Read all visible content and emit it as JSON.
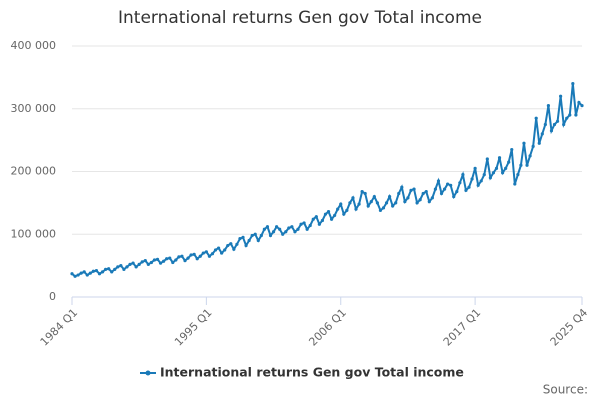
{
  "chart_data": {
    "type": "line",
    "title": "International returns Gen gov Total income",
    "categories": [
      "1984 Q1",
      null,
      null,
      null,
      null,
      null,
      null,
      null,
      null,
      null,
      null,
      null,
      null,
      null,
      null,
      null,
      null,
      null,
      null,
      null,
      null,
      null,
      null,
      null,
      null,
      null,
      null,
      null,
      null,
      null,
      null,
      null,
      null,
      null,
      null,
      null,
      null,
      null,
      null,
      null,
      null,
      null,
      null,
      null,
      "1995 Q1",
      null,
      null,
      null,
      null,
      null,
      null,
      null,
      null,
      null,
      null,
      null,
      null,
      null,
      null,
      null,
      null,
      null,
      null,
      null,
      null,
      null,
      null,
      null,
      null,
      null,
      null,
      null,
      null,
      null,
      null,
      null,
      null,
      null,
      null,
      null,
      null,
      null,
      null,
      null,
      null,
      null,
      null,
      null,
      "2006 Q1",
      null,
      null,
      null,
      null,
      null,
      null,
      null,
      null,
      null,
      null,
      null,
      null,
      null,
      null,
      null,
      null,
      null,
      null,
      null,
      null,
      null,
      null,
      null,
      null,
      null,
      null,
      null,
      null,
      null,
      null,
      null,
      null,
      null,
      null,
      null,
      null,
      null,
      null,
      null,
      null,
      null,
      null,
      null,
      "2017 Q1",
      null,
      null,
      null,
      null,
      null,
      null,
      null,
      null,
      null,
      null,
      null,
      null,
      null,
      null,
      null,
      null,
      null,
      null,
      null,
      null,
      null,
      null,
      null,
      null,
      null,
      null,
      null,
      null,
      null,
      null,
      null,
      null,
      null,
      null,
      "2025 Q4"
    ],
    "series": [
      {
        "name": "International returns Gen gov Total income",
        "color": "#1a7ab8",
        "values": [
          37000,
          33000,
          35000,
          38000,
          40000,
          35000,
          38000,
          41000,
          42000,
          37000,
          40000,
          44000,
          45000,
          40000,
          44000,
          48000,
          50000,
          44000,
          48000,
          52000,
          54000,
          48000,
          52000,
          56000,
          58000,
          52000,
          55000,
          59000,
          60000,
          54000,
          57000,
          61000,
          62000,
          55000,
          59000,
          64000,
          65000,
          58000,
          62000,
          67000,
          68000,
          61000,
          65000,
          70000,
          72000,
          65000,
          69000,
          75000,
          78000,
          70000,
          75000,
          82000,
          85000,
          76000,
          84000,
          93000,
          95000,
          82000,
          90000,
          98000,
          100000,
          90000,
          98000,
          108000,
          112000,
          98000,
          104000,
          112000,
          108000,
          100000,
          104000,
          110000,
          112000,
          104000,
          108000,
          116000,
          118000,
          108000,
          114000,
          124000,
          128000,
          116000,
          122000,
          132000,
          136000,
          124000,
          130000,
          140000,
          148000,
          132000,
          138000,
          150000,
          158000,
          140000,
          148000,
          168000,
          165000,
          145000,
          152000,
          160000,
          150000,
          138000,
          142000,
          150000,
          160000,
          145000,
          150000,
          165000,
          175000,
          152000,
          158000,
          170000,
          172000,
          150000,
          155000,
          165000,
          168000,
          152000,
          158000,
          172000,
          185000,
          165000,
          172000,
          180000,
          178000,
          160000,
          168000,
          182000,
          195000,
          170000,
          175000,
          188000,
          205000,
          178000,
          185000,
          195000,
          220000,
          190000,
          198000,
          205000,
          222000,
          198000,
          205000,
          215000,
          235000,
          180000,
          195000,
          210000,
          245000,
          210000,
          225000,
          240000,
          285000,
          245000,
          260000,
          275000,
          305000,
          265000,
          275000,
          280000,
          320000,
          275000,
          285000,
          290000,
          340000,
          290000,
          310000,
          305000
        ]
      }
    ],
    "ylim": [
      0,
      400000
    ],
    "yticks": [
      0,
      {
        "value": 100000,
        "label": "100 000"
      },
      {
        "value": 200000,
        "label": "200 000"
      },
      {
        "value": 300000,
        "label": "300 000"
      },
      {
        "value": 400000,
        "label": "400 000"
      }
    ],
    "grid": true,
    "source": "Source:"
  }
}
